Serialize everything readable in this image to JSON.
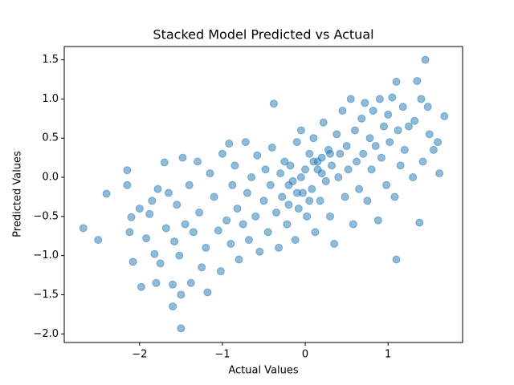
{
  "chart_data": {
    "type": "scatter",
    "title": "Stacked Model Predicted vs Actual",
    "x_label": "Actual Values",
    "y_label": "Predicted Values",
    "color": "#1f77b4",
    "xlim": [
      -2.91,
      1.9
    ],
    "ylim": [
      -2.11,
      1.67
    ],
    "xticks": [
      {
        "value": -2,
        "label": "−2"
      },
      {
        "value": -1,
        "label": "−1"
      },
      0,
      1
    ],
    "yticks": [
      1.5,
      {
        "value": 1,
        "label": "1.0"
      },
      0.5,
      {
        "value": 0,
        "label": "0.0"
      },
      {
        "value": -0.5,
        "label": "−0.5"
      },
      {
        "value": -1,
        "label": "−1.0"
      },
      {
        "value": -1.5,
        "label": "−1.5"
      },
      {
        "value": -2,
        "label": "−2.0"
      }
    ],
    "x": [
      -2.68,
      -2.5,
      -2.4,
      -2.15,
      -2.15,
      -2.12,
      -2.1,
      -2.08,
      -2.0,
      -1.98,
      -1.92,
      -1.88,
      -1.85,
      -1.82,
      -1.8,
      -1.78,
      -1.75,
      -1.7,
      -1.68,
      -1.65,
      -1.6,
      -1.6,
      -1.58,
      -1.55,
      -1.52,
      -1.5,
      -1.5,
      -1.48,
      -1.45,
      -1.4,
      -1.38,
      -1.35,
      -1.3,
      -1.28,
      -1.25,
      -1.2,
      -1.18,
      -1.15,
      -1.1,
      -1.05,
      -1.02,
      -1.0,
      -0.95,
      -0.92,
      -0.9,
      -0.88,
      -0.85,
      -0.82,
      -0.8,
      -0.75,
      -0.72,
      -0.7,
      -0.68,
      -0.65,
      -0.6,
      -0.58,
      -0.55,
      -0.5,
      -0.48,
      -0.45,
      -0.42,
      -0.4,
      -0.38,
      -0.35,
      -0.32,
      -0.3,
      -0.28,
      -0.25,
      -0.22,
      -0.2,
      -0.18,
      -0.15,
      -0.12,
      -0.1,
      -0.08,
      -0.05,
      -0.03,
      0.0,
      0.02,
      0.05,
      0.08,
      0.1,
      0.12,
      0.15,
      0.18,
      0.2,
      0.22,
      0.25,
      0.28,
      0.3,
      0.32,
      0.35,
      0.38,
      0.4,
      0.42,
      0.45,
      0.48,
      0.5,
      0.52,
      0.55,
      0.58,
      0.6,
      0.62,
      0.65,
      0.68,
      0.7,
      0.72,
      0.75,
      0.78,
      0.8,
      0.82,
      0.85,
      0.88,
      0.9,
      0.92,
      0.95,
      0.98,
      1.0,
      1.02,
      1.05,
      1.08,
      1.1,
      1.1,
      1.12,
      1.15,
      1.18,
      1.2,
      1.25,
      1.3,
      1.32,
      1.35,
      1.38,
      1.4,
      1.42,
      1.45,
      1.48,
      1.5,
      1.55,
      1.6,
      1.62,
      1.68,
      0.1,
      0.2,
      -0.1,
      0.05,
      -0.2,
      0.3,
      0.15,
      -0.05
    ],
    "y": [
      -0.65,
      -0.8,
      -0.21,
      0.09,
      -0.1,
      -0.7,
      -0.51,
      -1.08,
      -0.4,
      -1.4,
      -0.78,
      -0.47,
      -0.3,
      -0.98,
      -1.35,
      -0.15,
      -1.1,
      0.19,
      -0.65,
      -0.2,
      -1.65,
      -1.37,
      -0.82,
      -0.35,
      -1.0,
      -1.93,
      -1.5,
      0.25,
      -0.6,
      -0.1,
      -1.35,
      -0.7,
      0.2,
      -0.45,
      -1.15,
      -0.9,
      -1.47,
      0.05,
      -0.25,
      -0.68,
      -1.2,
      0.3,
      -0.55,
      0.43,
      -0.85,
      -0.1,
      0.15,
      -0.4,
      -1.05,
      -0.6,
      0.45,
      -0.2,
      -0.8,
      0.0,
      -0.5,
      0.28,
      -0.95,
      -0.3,
      0.1,
      -0.7,
      -0.1,
      0.38,
      0.94,
      -0.45,
      -0.9,
      0.05,
      -0.25,
      0.2,
      -0.6,
      -0.35,
      0.15,
      -0.05,
      -0.8,
      0.45,
      -0.4,
      0.6,
      -0.2,
      0.1,
      -0.5,
      0.3,
      -0.15,
      0.5,
      -0.7,
      0.2,
      -0.3,
      0.05,
      0.7,
      -0.05,
      0.35,
      -0.5,
      0.15,
      -0.85,
      0.55,
      0.0,
      0.3,
      0.85,
      -0.25,
      0.4,
      0.1,
      1.0,
      -0.6,
      0.6,
      0.2,
      -0.15,
      0.75,
      0.3,
      0.95,
      -0.3,
      0.5,
      0.1,
      0.85,
      0.4,
      -0.55,
      1.0,
      0.25,
      0.65,
      -0.1,
      0.8,
      0.45,
      1.02,
      -0.25,
      1.22,
      -1.05,
      0.6,
      0.15,
      0.9,
      0.35,
      0.65,
      0.0,
      0.72,
      1.23,
      -0.58,
      1.0,
      0.2,
      1.5,
      0.9,
      0.55,
      0.35,
      0.45,
      0.05,
      0.78,
      0.2,
      0.25,
      -0.2,
      -0.3,
      -0.1,
      0.3,
      0.1,
      0.0
    ]
  }
}
